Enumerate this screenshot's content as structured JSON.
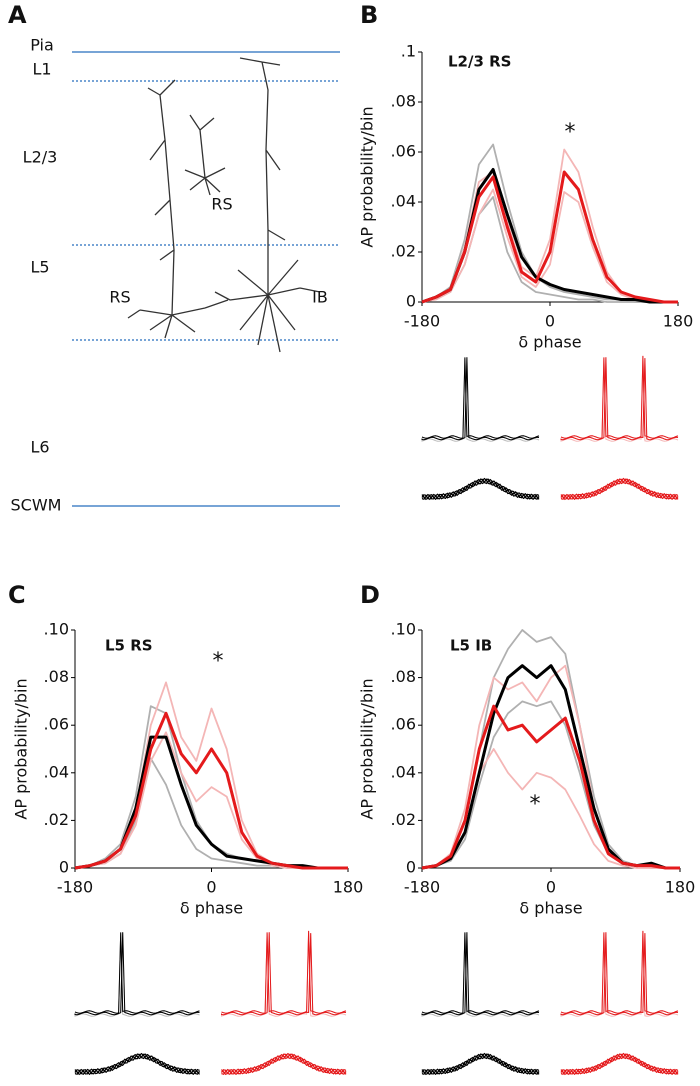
{
  "diagram": {
    "label": "A",
    "layers": [
      "Pia",
      "L1",
      "L2/3",
      "L5",
      "L6",
      "SCWM"
    ],
    "cells": [
      "RS",
      "RS",
      "IB"
    ]
  },
  "chart_data": [
    {
      "type": "line",
      "label": "B",
      "title": "L2/3 RS",
      "annotation": "*",
      "x_label": "δ phase",
      "y_label": "AP probability/bin",
      "x": [
        -180,
        -160,
        -140,
        -120,
        -100,
        -80,
        -60,
        -40,
        -20,
        0,
        20,
        40,
        60,
        80,
        100,
        120,
        140,
        160,
        180
      ],
      "xlim": [
        -180,
        180
      ],
      "xticks": [
        -180,
        0,
        180
      ],
      "ylim": [
        0,
        0.1
      ],
      "yticks": [
        0,
        {
          "value": 0.02,
          "label": ".02"
        },
        {
          "value": 0.04,
          "label": ".04"
        },
        {
          "value": 0.06,
          "label": ".06"
        },
        {
          "value": 0.08,
          "label": ".08"
        },
        {
          "value": 0.1,
          "label": ".1"
        }
      ],
      "series": [
        {
          "color": "#b0b0b0",
          "values": [
            0,
            0.002,
            0.006,
            0.025,
            0.055,
            0.063,
            0.04,
            0.02,
            0.01,
            0.006,
            0.004,
            0.003,
            0.002,
            0.001,
            0.001,
            0,
            0,
            0,
            0
          ]
        },
        {
          "color": "#b0b0b0",
          "values": [
            0,
            0.002,
            0.004,
            0.015,
            0.035,
            0.042,
            0.02,
            0.008,
            0.004,
            0.003,
            0.002,
            0.001,
            0.001,
            0,
            0,
            0,
            0,
            0,
            0
          ]
        },
        {
          "color": "#f4b6b6",
          "values": [
            0,
            0.002,
            0.005,
            0.022,
            0.048,
            0.052,
            0.032,
            0.014,
            0.01,
            0.025,
            0.061,
            0.052,
            0.03,
            0.012,
            0.004,
            0.002,
            0.001,
            0,
            0
          ]
        },
        {
          "color": "#f4b6b6",
          "values": [
            0,
            0.001,
            0.004,
            0.015,
            0.035,
            0.045,
            0.026,
            0.01,
            0.006,
            0.015,
            0.044,
            0.04,
            0.022,
            0.008,
            0.003,
            0.001,
            0,
            0,
            0
          ]
        },
        {
          "color": "#000000",
          "values": [
            0,
            0.002,
            0.005,
            0.02,
            0.045,
            0.053,
            0.035,
            0.018,
            0.01,
            0.007,
            0.005,
            0.004,
            0.003,
            0.002,
            0.001,
            0.001,
            0,
            0,
            0
          ]
        },
        {
          "color": "#e41a1c",
          "values": [
            0,
            0.002,
            0.005,
            0.02,
            0.042,
            0.05,
            0.03,
            0.012,
            0.008,
            0.02,
            0.052,
            0.045,
            0.025,
            0.01,
            0.004,
            0.002,
            0.001,
            0,
            0
          ]
        }
      ]
    },
    {
      "type": "line",
      "label": "C",
      "title": "L5 RS",
      "annotation": "*",
      "x_label": "δ phase",
      "y_label": "AP probability/bin",
      "x": [
        -180,
        -160,
        -140,
        -120,
        -100,
        -80,
        -60,
        -40,
        -20,
        0,
        20,
        40,
        60,
        80,
        100,
        120,
        140,
        160,
        180
      ],
      "xlim": [
        -180,
        180
      ],
      "xticks": [
        -180,
        0,
        180
      ],
      "ylim": [
        0,
        0.1
      ],
      "yticks": [
        0,
        {
          "value": 0.02,
          "label": ".02"
        },
        {
          "value": 0.04,
          "label": ".04"
        },
        {
          "value": 0.06,
          "label": ".06"
        },
        {
          "value": 0.08,
          "label": ".08"
        },
        {
          "value": 0.1,
          "label": ".10"
        }
      ],
      "series": [
        {
          "color": "#b0b0b0",
          "values": [
            0,
            0.001,
            0.004,
            0.01,
            0.03,
            0.068,
            0.065,
            0.04,
            0.02,
            0.01,
            0.006,
            0.004,
            0.003,
            0.002,
            0.001,
            0,
            0,
            0,
            0
          ]
        },
        {
          "color": "#b0b0b0",
          "values": [
            0,
            0.001,
            0.002,
            0.006,
            0.02,
            0.046,
            0.035,
            0.018,
            0.008,
            0.004,
            0.003,
            0.002,
            0.001,
            0.001,
            0,
            0,
            0,
            0,
            0
          ]
        },
        {
          "color": "#f4b6b6",
          "values": [
            0,
            0.001,
            0.003,
            0.008,
            0.025,
            0.06,
            0.078,
            0.055,
            0.045,
            0.067,
            0.05,
            0.02,
            0.006,
            0.002,
            0.001,
            0,
            0,
            0,
            0
          ]
        },
        {
          "color": "#f4b6b6",
          "values": [
            0,
            0.001,
            0.002,
            0.006,
            0.018,
            0.045,
            0.057,
            0.04,
            0.028,
            0.034,
            0.03,
            0.012,
            0.004,
            0.001,
            0,
            0,
            0,
            0,
            0
          ]
        },
        {
          "color": "#000000",
          "values": [
            0,
            0.001,
            0.003,
            0.008,
            0.025,
            0.055,
            0.055,
            0.035,
            0.018,
            0.01,
            0.005,
            0.004,
            0.003,
            0.002,
            0.001,
            0.001,
            0,
            0,
            0
          ]
        },
        {
          "color": "#e41a1c",
          "values": [
            0,
            0.001,
            0.003,
            0.008,
            0.022,
            0.05,
            0.065,
            0.048,
            0.04,
            0.05,
            0.04,
            0.015,
            0.005,
            0.002,
            0.001,
            0,
            0,
            0,
            0
          ]
        }
      ]
    },
    {
      "type": "line",
      "label": "D",
      "title": "L5 IB",
      "annotation": "*",
      "x_label": "δ phase",
      "y_label": "AP probability/bin",
      "x": [
        -180,
        -160,
        -140,
        -120,
        -100,
        -80,
        -60,
        -40,
        -20,
        0,
        20,
        40,
        60,
        80,
        100,
        120,
        140,
        160,
        180
      ],
      "xlim": [
        -180,
        180
      ],
      "xticks": [
        -180,
        0,
        180
      ],
      "ylim": [
        0,
        0.1
      ],
      "yticks": [
        0,
        {
          "value": 0.02,
          "label": ".02"
        },
        {
          "value": 0.04,
          "label": ".04"
        },
        {
          "value": 0.06,
          "label": ".06"
        },
        {
          "value": 0.08,
          "label": ".08"
        },
        {
          "value": 0.1,
          "label": ".10"
        }
      ],
      "series": [
        {
          "color": "#b0b0b0",
          "values": [
            0,
            0.001,
            0.005,
            0.02,
            0.05,
            0.08,
            0.092,
            0.1,
            0.095,
            0.097,
            0.09,
            0.06,
            0.03,
            0.01,
            0.003,
            0.001,
            0.001,
            0,
            0
          ]
        },
        {
          "color": "#b0b0b0",
          "values": [
            0,
            0.001,
            0.003,
            0.012,
            0.035,
            0.055,
            0.065,
            0.07,
            0.068,
            0.07,
            0.06,
            0.04,
            0.018,
            0.006,
            0.002,
            0.001,
            0,
            0,
            0
          ]
        },
        {
          "color": "#f4b6b6",
          "values": [
            0,
            0.001,
            0.006,
            0.025,
            0.06,
            0.08,
            0.075,
            0.078,
            0.07,
            0.08,
            0.085,
            0.06,
            0.025,
            0.008,
            0.002,
            0.001,
            0,
            0,
            0
          ]
        },
        {
          "color": "#f4b6b6",
          "values": [
            0,
            0.001,
            0.004,
            0.015,
            0.04,
            0.05,
            0.04,
            0.033,
            0.04,
            0.038,
            0.033,
            0.022,
            0.01,
            0.003,
            0.001,
            0,
            0,
            0,
            0
          ]
        },
        {
          "color": "#000000",
          "values": [
            0,
            0.001,
            0.004,
            0.015,
            0.04,
            0.065,
            0.08,
            0.085,
            0.08,
            0.085,
            0.075,
            0.05,
            0.025,
            0.008,
            0.002,
            0.001,
            0.002,
            0,
            0
          ]
        },
        {
          "color": "#e41a1c",
          "values": [
            0,
            0.001,
            0.005,
            0.02,
            0.05,
            0.068,
            0.058,
            0.06,
            0.053,
            0.058,
            0.063,
            0.045,
            0.02,
            0.006,
            0.002,
            0.001,
            0.001,
            0,
            0
          ]
        }
      ]
    }
  ]
}
